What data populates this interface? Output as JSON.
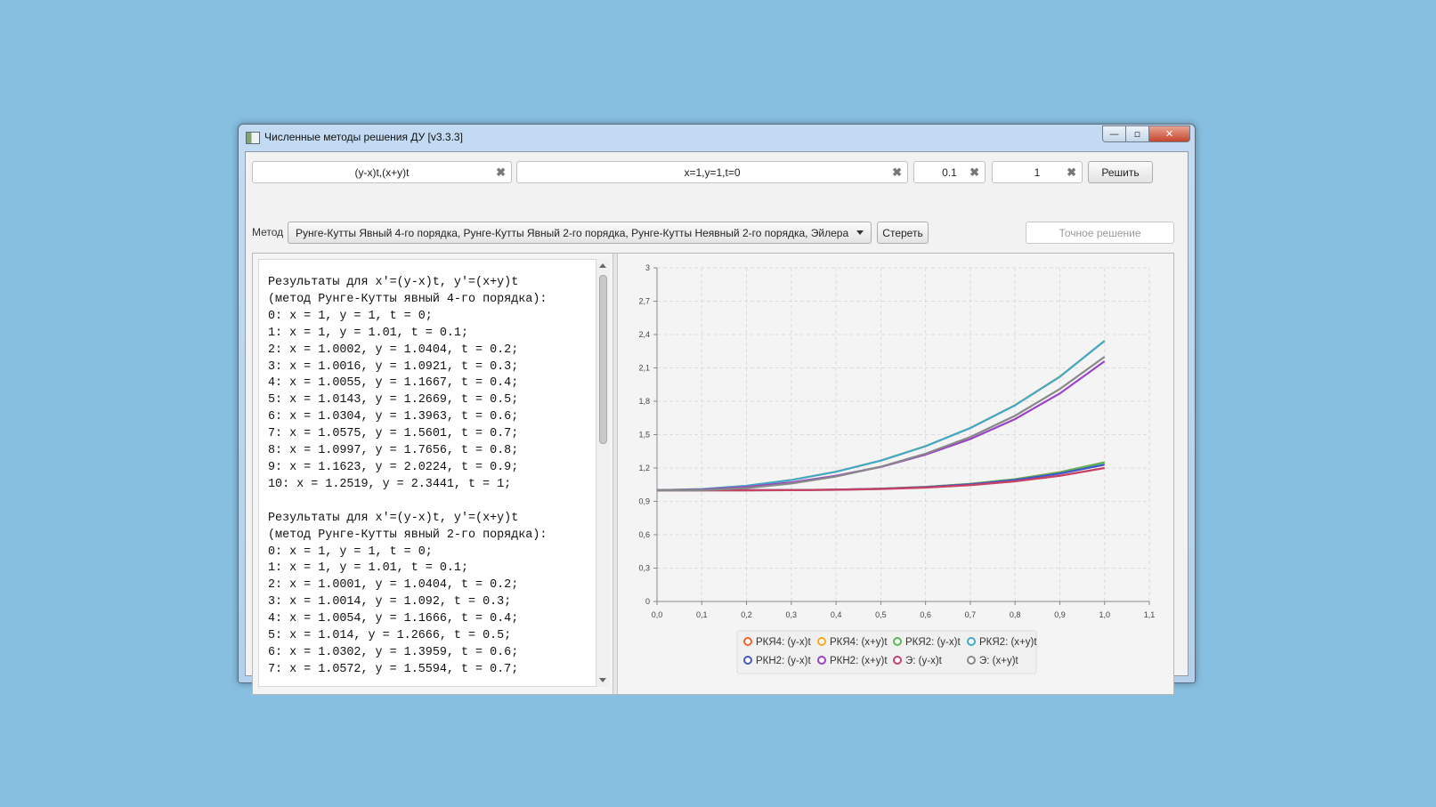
{
  "window": {
    "title": "Численные методы решения ДУ [v3.3.3]",
    "buttons": {
      "minimize": "—",
      "maximize": "▫",
      "close": "✕"
    }
  },
  "toolbar": {
    "equation_value": "(y-x)t,(x+y)t",
    "initial_value": "x=1,y=1,t=0",
    "step_value": "0.1",
    "end_value": "1",
    "clear_symbol": "✖",
    "solve_label": "Решить",
    "method_label": "Метод",
    "method_value": "Рунге-Кутты Явный 4-го порядка, Рунге-Кутты Явный 2-го порядка, Рунге-Кутты Неявный 2-го порядка, Эйлера",
    "erase_label": "Стереть",
    "exact_placeholder": "Точное решение"
  },
  "results_text": "Результаты для x'=(y-x)t, y'=(x+y)t\n(метод Рунге-Кутты явный 4-го порядка):\n0: x = 1, y = 1, t = 0;\n1: x = 1, y = 1.01, t = 0.1;\n2: x = 1.0002, y = 1.0404, t = 0.2;\n3: x = 1.0016, y = 1.0921, t = 0.3;\n4: x = 1.0055, y = 1.1667, t = 0.4;\n5: x = 1.0143, y = 1.2669, t = 0.5;\n6: x = 1.0304, y = 1.3963, t = 0.6;\n7: x = 1.0575, y = 1.5601, t = 0.7;\n8: x = 1.0997, y = 1.7656, t = 0.8;\n9: x = 1.1623, y = 2.0224, t = 0.9;\n10: x = 1.2519, y = 2.3441, t = 1;\n\nРезультаты для x'=(y-x)t, y'=(x+y)t\n(метод Рунге-Кутты явный 2-го порядка):\n0: x = 1, y = 1, t = 0;\n1: x = 1, y = 1.01, t = 0.1;\n2: x = 1.0001, y = 1.0404, t = 0.2;\n3: x = 1.0014, y = 1.092, t = 0.3;\n4: x = 1.0054, y = 1.1666, t = 0.4;\n5: x = 1.014, y = 1.2666, t = 0.5;\n6: x = 1.0302, y = 1.3959, t = 0.6;\n7: x = 1.0572, y = 1.5594, t = 0.7;",
  "chart_data": {
    "type": "line",
    "x": [
      0,
      0.1,
      0.2,
      0.3,
      0.4,
      0.5,
      0.6,
      0.7,
      0.8,
      0.9,
      1.0
    ],
    "xlim": [
      0,
      1.1
    ],
    "ylim": [
      0,
      3
    ],
    "x_ticks": [
      "0,0",
      "0,1",
      "0,2",
      "0,3",
      "0,4",
      "0,5",
      "0,6",
      "0,7",
      "0,8",
      "0,9",
      "1,0",
      "1,1"
    ],
    "y_ticks": [
      "0",
      "0,3",
      "0,6",
      "0,9",
      "1,2",
      "1,5",
      "1,8",
      "2,1",
      "2,4",
      "2,7",
      "3"
    ],
    "grid": true,
    "legend_position": "bottom",
    "series": [
      {
        "name": "РКЯ4: (y-x)t",
        "color": "#f3622d",
        "values": [
          1,
          1,
          1.0002,
          1.0016,
          1.0055,
          1.0143,
          1.0304,
          1.0575,
          1.0997,
          1.1623,
          1.2519
        ]
      },
      {
        "name": "РКЯ4: (x+y)t",
        "color": "#fba71b",
        "values": [
          1,
          1.01,
          1.0404,
          1.0921,
          1.1667,
          1.2669,
          1.3963,
          1.5601,
          1.7656,
          2.0224,
          2.3441
        ]
      },
      {
        "name": "РКЯ2: (y-x)t",
        "color": "#57b757",
        "values": [
          1,
          1,
          1.0001,
          1.0014,
          1.0054,
          1.014,
          1.0302,
          1.0572,
          1.099,
          1.161,
          1.25
        ]
      },
      {
        "name": "РКЯ2: (x+y)t",
        "color": "#41a9c9",
        "values": [
          1,
          1.01,
          1.0404,
          1.092,
          1.1666,
          1.2666,
          1.3959,
          1.5594,
          1.764,
          2.02,
          2.343
        ]
      },
      {
        "name": "РКН2: (y-x)t",
        "color": "#4258c9",
        "values": [
          1,
          1,
          1.0001,
          1.0013,
          1.005,
          1.013,
          1.028,
          1.053,
          1.092,
          1.15,
          1.23
        ]
      },
      {
        "name": "РКН2: (x+y)t",
        "color": "#9a42c8",
        "values": [
          1,
          1.005,
          1.03,
          1.07,
          1.13,
          1.21,
          1.32,
          1.46,
          1.64,
          1.87,
          2.16
        ]
      },
      {
        "name": "Э: (y-x)t",
        "color": "#c84164",
        "values": [
          1,
          1,
          1,
          1.001,
          1.004,
          1.011,
          1.024,
          1.046,
          1.08,
          1.13,
          1.2
        ]
      },
      {
        "name": "Э: (x+y)t",
        "color": "#888888",
        "values": [
          1,
          1,
          1.02,
          1.061,
          1.124,
          1.212,
          1.329,
          1.479,
          1.67,
          1.91,
          2.2
        ]
      }
    ]
  }
}
